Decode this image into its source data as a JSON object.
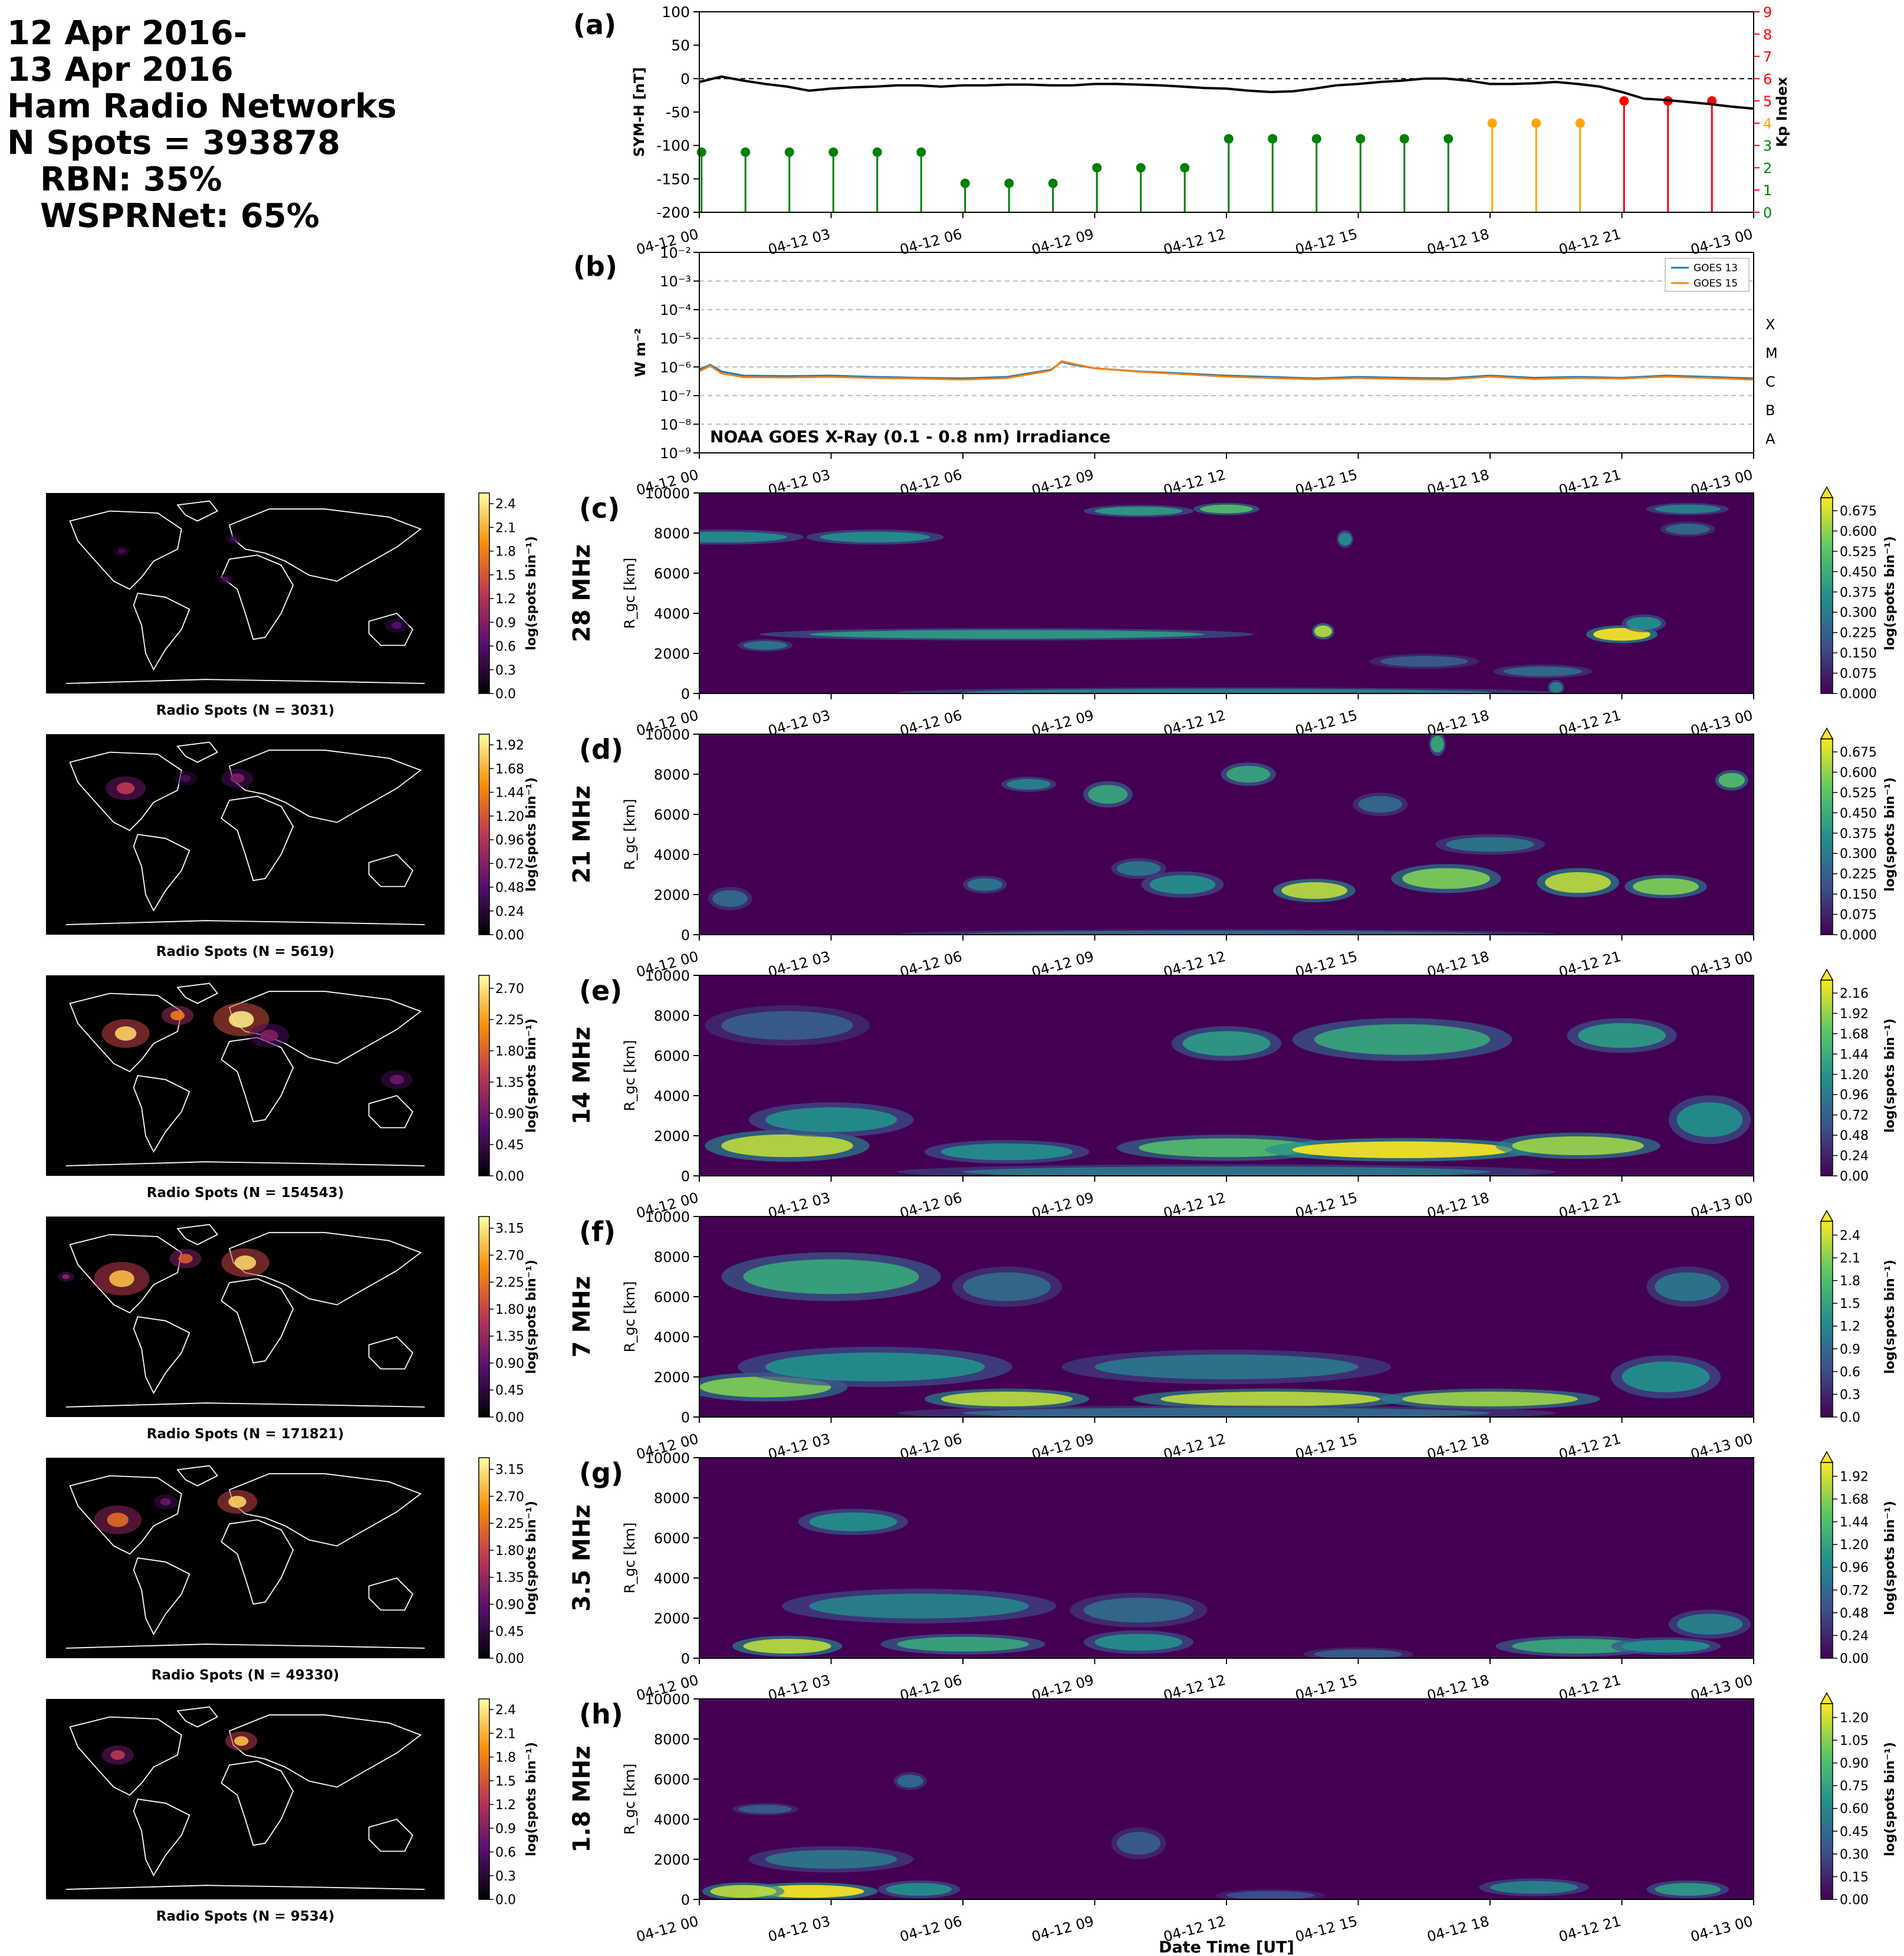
{
  "header": {
    "line1": "12 Apr 2016-",
    "line2": "13 Apr 2016",
    "line3": "Ham Radio Networks",
    "line4": "N Spots = 393878",
    "line5": "RBN: 35%",
    "line6": "WSPRNet: 65%"
  },
  "time_ticks": [
    "04-12 00",
    "04-12 03",
    "04-12 06",
    "04-12 09",
    "04-12 12",
    "04-12 15",
    "04-12 18",
    "04-12 21",
    "04-13 00"
  ],
  "xlabel": "Date Time [UT]",
  "colors": {
    "symh": "#000000",
    "kp_green": "#008000",
    "kp_orange": "#ffa500",
    "kp_red": "#ff0000",
    "goes13": "#1f77b4",
    "goes15": "#ff7f0e",
    "map_bg": "#000000",
    "coast": "#ffffff"
  },
  "chart_data": [
    {
      "panel": "(a)",
      "type": "line",
      "ylabel": "SYM-H [nT]",
      "ylim": [
        -200,
        100
      ],
      "yticks": [
        100,
        50,
        0,
        -50,
        -100,
        -150,
        -200
      ],
      "symh": {
        "x_hours": [
          0,
          0.5,
          1,
          1.5,
          2,
          2.5,
          3,
          3.5,
          4,
          4.5,
          5,
          5.5,
          6,
          6.5,
          7,
          7.5,
          8,
          8.5,
          9,
          9.5,
          10,
          10.5,
          11,
          11.5,
          12,
          12.5,
          13,
          13.5,
          14,
          14.5,
          15,
          15.5,
          16,
          16.5,
          17,
          17.5,
          18,
          18.5,
          19,
          19.5,
          20,
          20.5,
          21,
          21.5,
          22,
          22.5,
          23,
          23.5,
          24
        ],
        "values": [
          -5,
          3,
          -3,
          -8,
          -12,
          -18,
          -15,
          -13,
          -12,
          -10,
          -10,
          -12,
          -10,
          -10,
          -9,
          -9,
          -10,
          -10,
          -8,
          -8,
          -9,
          -10,
          -12,
          -14,
          -15,
          -18,
          -20,
          -19,
          -15,
          -10,
          -8,
          -5,
          -3,
          0,
          0,
          -3,
          -8,
          -8,
          -7,
          -5,
          -8,
          -12,
          -20,
          -30,
          -32,
          -35,
          -38,
          -42,
          -45
        ]
      },
      "zero_line": 0,
      "kp_axis": {
        "label": "Kp Index",
        "ylim": [
          0,
          9
        ],
        "ticks": [
          0,
          1,
          2,
          3,
          4,
          5,
          6,
          7,
          8,
          9
        ]
      },
      "kp": {
        "x_hours": [
          0,
          1,
          2,
          3,
          4,
          5,
          6,
          7,
          8,
          9,
          10,
          11,
          12,
          13,
          14,
          15,
          16,
          17,
          18,
          19,
          20,
          21,
          22,
          23
        ],
        "values": [
          2.7,
          2.7,
          2.7,
          2.7,
          2.7,
          2.7,
          1.3,
          1.3,
          1.3,
          2,
          2,
          2,
          3.3,
          3.3,
          3.3,
          3.3,
          3.3,
          3.3,
          4,
          4,
          4,
          5,
          5,
          5
        ],
        "colors": [
          "green",
          "green",
          "green",
          "green",
          "green",
          "green",
          "green",
          "green",
          "green",
          "green",
          "green",
          "green",
          "green",
          "green",
          "green",
          "green",
          "green",
          "green",
          "orange",
          "orange",
          "orange",
          "red",
          "red",
          "red"
        ]
      }
    },
    {
      "panel": "(b)",
      "type": "line",
      "ylabel": "W m⁻²",
      "yscale": "log",
      "ylim": [
        1e-09,
        0.01
      ],
      "ytick_labels": [
        "10⁻²",
        "10⁻³",
        "10⁻⁴",
        "10⁻⁵",
        "10⁻⁶",
        "10⁻⁷",
        "10⁻⁸",
        "10⁻⁹"
      ],
      "class_labels": [
        "X",
        "M",
        "C",
        "B",
        "A"
      ],
      "annotation": "NOAA GOES X-Ray (0.1 - 0.8 nm) Irradiance",
      "legend": [
        "GOES 13",
        "GOES 15"
      ],
      "legend_position": "top-right",
      "series": [
        {
          "name": "GOES 13",
          "x_hours": [
            0,
            0.25,
            0.5,
            1,
            2,
            3,
            4,
            5,
            6,
            7,
            7.5,
            8,
            8.25,
            8.5,
            9,
            10,
            11,
            12,
            13,
            14,
            15,
            16,
            17,
            18,
            19,
            20,
            21,
            22,
            23,
            24
          ],
          "values": [
            8e-07,
            1.2e-06,
            7e-07,
            5e-07,
            4.8e-07,
            5e-07,
            4.5e-07,
            4.2e-07,
            4e-07,
            4.5e-07,
            6e-07,
            8e-07,
            1.5e-06,
            1.2e-06,
            9e-07,
            7e-07,
            6e-07,
            5e-07,
            4.5e-07,
            4e-07,
            4.5e-07,
            4.2e-07,
            4e-07,
            5e-07,
            4.2e-07,
            4.5e-07,
            4.2e-07,
            5e-07,
            4.5e-07,
            4e-07
          ]
        },
        {
          "name": "GOES 15",
          "x_hours": [
            0,
            0.25,
            0.5,
            1,
            2,
            3,
            4,
            5,
            6,
            7,
            7.5,
            8,
            8.25,
            8.5,
            9,
            10,
            11,
            12,
            13,
            14,
            15,
            16,
            17,
            18,
            19,
            20,
            21,
            22,
            23,
            24
          ],
          "values": [
            7e-07,
            1.1e-06,
            6e-07,
            4.4e-07,
            4.3e-07,
            4.5e-07,
            4.1e-07,
            3.9e-07,
            3.6e-07,
            4.1e-07,
            5.5e-07,
            7.5e-07,
            1.6e-06,
            1.3e-06,
            9e-07,
            6.8e-07,
            5.6e-07,
            4.6e-07,
            4.1e-07,
            3.7e-07,
            4.1e-07,
            3.8e-07,
            3.6e-07,
            4.6e-07,
            3.8e-07,
            4.1e-07,
            3.9e-07,
            4.6e-07,
            4.1e-07,
            3.6e-07
          ]
        }
      ]
    },
    {
      "panel": "(c)",
      "type": "heatmap",
      "band": "28 MHz",
      "ylabel": "R_gc [km]",
      "ylim": [
        0,
        10000
      ],
      "yticks": [
        0,
        2000,
        4000,
        6000,
        8000,
        10000
      ],
      "colorbar": {
        "label": "log(spots bin⁻¹)",
        "ticks": [
          "0.000",
          "0.075",
          "0.150",
          "0.225",
          "0.300",
          "0.375",
          "0.450",
          "0.525",
          "0.600",
          "0.675"
        ]
      },
      "map": {
        "caption": "Radio Spots (N = 3031)",
        "colorbar_ticks": [
          "0.0",
          "0.3",
          "0.6",
          "0.9",
          "1.2",
          "1.5",
          "1.8",
          "2.1",
          "2.4"
        ]
      },
      "blobs": [
        [
          0.5,
          7800,
          3,
          300,
          0.5
        ],
        [
          4,
          7800,
          2.5,
          300,
          0.5
        ],
        [
          7,
          2950,
          9,
          200,
          0.55
        ],
        [
          1.5,
          2400,
          1,
          200,
          0.4
        ],
        [
          10,
          9100,
          2,
          200,
          0.55
        ],
        [
          12,
          9200,
          1.2,
          200,
          0.7
        ],
        [
          14.2,
          3100,
          0.4,
          350,
          0.9
        ],
        [
          14.7,
          7700,
          0.3,
          400,
          0.5
        ],
        [
          16.5,
          1600,
          2,
          300,
          0.3
        ],
        [
          19.2,
          1100,
          1.8,
          250,
          0.35
        ],
        [
          21,
          2950,
          1.3,
          400,
          1.0
        ],
        [
          21.5,
          3500,
          0.8,
          400,
          0.5
        ],
        [
          22.5,
          9200,
          1.5,
          200,
          0.45
        ],
        [
          22.5,
          8200,
          1,
          300,
          0.35
        ],
        [
          19.5,
          300,
          0.3,
          300,
          0.45
        ],
        [
          12,
          50,
          12,
          120,
          0.45
        ]
      ]
    },
    {
      "panel": "(d)",
      "type": "heatmap",
      "band": "21 MHz",
      "ylabel": "R_gc [km]",
      "ylim": [
        0,
        10000
      ],
      "yticks": [
        0,
        2000,
        4000,
        6000,
        8000,
        10000
      ],
      "colorbar": {
        "label": "log(spots bin⁻¹)",
        "ticks": [
          "0.000",
          "0.075",
          "0.150",
          "0.225",
          "0.300",
          "0.375",
          "0.450",
          "0.525",
          "0.600",
          "0.675"
        ]
      },
      "map": {
        "caption": "Radio Spots (N = 5619)",
        "colorbar_ticks": [
          "0.00",
          "0.24",
          "0.48",
          "0.72",
          "0.96",
          "1.20",
          "1.44",
          "1.68",
          "1.92"
        ]
      },
      "blobs": [
        [
          0.7,
          1800,
          0.8,
          600,
          0.35
        ],
        [
          7.5,
          7500,
          1,
          300,
          0.45
        ],
        [
          9.3,
          7000,
          0.9,
          700,
          0.6
        ],
        [
          12.5,
          8000,
          1,
          600,
          0.6
        ],
        [
          14,
          2200,
          1.5,
          600,
          0.9
        ],
        [
          17,
          2800,
          2,
          800,
          0.8
        ],
        [
          20,
          2600,
          1.5,
          800,
          0.9
        ],
        [
          22,
          2400,
          1.5,
          600,
          0.8
        ],
        [
          23.5,
          7700,
          0.6,
          500,
          0.7
        ],
        [
          16.8,
          9500,
          0.3,
          600,
          0.6
        ],
        [
          18,
          4500,
          2,
          500,
          0.4
        ],
        [
          11,
          2500,
          1.5,
          700,
          0.5
        ],
        [
          6.5,
          2500,
          0.8,
          400,
          0.4
        ],
        [
          10,
          3300,
          1,
          500,
          0.4
        ],
        [
          15.5,
          6500,
          1,
          600,
          0.35
        ],
        [
          12,
          30,
          12,
          100,
          0.35
        ]
      ]
    },
    {
      "panel": "(e)",
      "type": "heatmap",
      "band": "14 MHz",
      "ylabel": "R_gc [km]",
      "ylim": [
        0,
        10000
      ],
      "yticks": [
        0,
        2000,
        4000,
        6000,
        8000,
        10000
      ],
      "colorbar": {
        "label": "log(spots bin⁻¹)",
        "ticks": [
          "0.00",
          "0.24",
          "0.48",
          "0.72",
          "0.96",
          "1.20",
          "1.44",
          "1.68",
          "1.92",
          "2.16"
        ]
      },
      "map": {
        "caption": "Radio Spots (N = 154543)",
        "colorbar_ticks": [
          "0.00",
          "0.45",
          "0.90",
          "1.35",
          "1.80",
          "2.25",
          "2.70"
        ]
      },
      "blobs": [
        [
          2,
          1500,
          3,
          900,
          0.9
        ],
        [
          3,
          2800,
          3,
          1000,
          0.5
        ],
        [
          12,
          1400,
          4,
          700,
          0.7
        ],
        [
          16,
          1300,
          5,
          600,
          1.0
        ],
        [
          20,
          1500,
          3,
          700,
          0.85
        ],
        [
          16,
          6800,
          4,
          1300,
          0.6
        ],
        [
          12,
          6600,
          2,
          1000,
          0.55
        ],
        [
          21,
          7000,
          2,
          1000,
          0.55
        ],
        [
          2,
          7500,
          3,
          1200,
          0.3
        ],
        [
          23,
          2800,
          1.5,
          1500,
          0.5
        ],
        [
          7,
          1200,
          3,
          600,
          0.5
        ],
        [
          12,
          200,
          12,
          300,
          0.4
        ]
      ]
    },
    {
      "panel": "(f)",
      "type": "heatmap",
      "band": "7 MHz",
      "ylabel": "R_gc [km]",
      "ylim": [
        0,
        10000
      ],
      "yticks": [
        0,
        2000,
        4000,
        6000,
        8000,
        10000
      ],
      "colorbar": {
        "label": "log(spots bin⁻¹)",
        "ticks": [
          "0.0",
          "0.3",
          "0.6",
          "0.9",
          "1.2",
          "1.5",
          "1.8",
          "2.1",
          "2.4"
        ]
      },
      "map": {
        "caption": "Radio Spots (N = 171821)",
        "colorbar_ticks": [
          "0.00",
          "0.45",
          "0.90",
          "1.35",
          "1.80",
          "2.25",
          "2.70",
          "3.15"
        ]
      },
      "blobs": [
        [
          1.5,
          1500,
          3,
          800,
          0.8
        ],
        [
          7,
          900,
          3,
          500,
          0.9
        ],
        [
          13,
          900,
          5,
          500,
          0.9
        ],
        [
          18,
          900,
          4,
          500,
          0.85
        ],
        [
          4,
          2500,
          5,
          1200,
          0.5
        ],
        [
          3,
          7000,
          4,
          1500,
          0.6
        ],
        [
          7,
          6500,
          2,
          1200,
          0.35
        ],
        [
          22.5,
          6500,
          1.5,
          1200,
          0.4
        ],
        [
          12,
          2500,
          6,
          1000,
          0.4
        ],
        [
          22,
          2000,
          2,
          1300,
          0.5
        ],
        [
          12,
          200,
          12,
          300,
          0.35
        ]
      ]
    },
    {
      "panel": "(g)",
      "type": "heatmap",
      "band": "3.5 MHz",
      "ylabel": "R_gc [km]",
      "ylim": [
        0,
        10000
      ],
      "yticks": [
        0,
        2000,
        4000,
        6000,
        8000,
        10000
      ],
      "colorbar": {
        "label": "log(spots bin⁻¹)",
        "ticks": [
          "0.00",
          "0.24",
          "0.48",
          "0.72",
          "0.96",
          "1.20",
          "1.44",
          "1.68",
          "1.92"
        ]
      },
      "map": {
        "caption": "Radio Spots (N = 49330)",
        "colorbar_ticks": [
          "0.00",
          "0.45",
          "0.90",
          "1.35",
          "1.80",
          "2.25",
          "2.70",
          "3.15"
        ]
      },
      "blobs": [
        [
          2,
          600,
          2,
          500,
          0.9
        ],
        [
          6,
          700,
          3,
          500,
          0.6
        ],
        [
          10,
          800,
          2,
          600,
          0.5
        ],
        [
          3.5,
          6800,
          2,
          700,
          0.5
        ],
        [
          5,
          2600,
          5,
          1000,
          0.45
        ],
        [
          10,
          2400,
          2.5,
          1000,
          0.35
        ],
        [
          20,
          600,
          3,
          500,
          0.6
        ],
        [
          23,
          1700,
          1.5,
          800,
          0.45
        ],
        [
          22,
          600,
          2,
          400,
          0.5
        ],
        [
          15,
          200,
          2,
          250,
          0.3
        ]
      ]
    },
    {
      "panel": "(h)",
      "type": "heatmap",
      "band": "1.8 MHz",
      "ylabel": "R_gc [km]",
      "ylim": [
        0,
        10000
      ],
      "yticks": [
        0,
        2000,
        4000,
        6000,
        8000,
        10000
      ],
      "colorbar": {
        "label": "log(spots bin⁻¹)",
        "ticks": [
          "0.00",
          "0.15",
          "0.30",
          "0.45",
          "0.60",
          "0.75",
          "0.90",
          "1.05",
          "1.20"
        ]
      },
      "map": {
        "caption": "Radio Spots (N = 9534)",
        "colorbar_ticks": [
          "0.0",
          "0.3",
          "0.6",
          "0.9",
          "1.2",
          "1.5",
          "1.8",
          "2.1",
          "2.4"
        ]
      },
      "blobs": [
        [
          2.5,
          400,
          2.5,
          400,
          1.0
        ],
        [
          1,
          400,
          1.5,
          400,
          0.9
        ],
        [
          5,
          500,
          1.5,
          400,
          0.5
        ],
        [
          3,
          2000,
          3,
          700,
          0.4
        ],
        [
          10,
          2800,
          1,
          900,
          0.3
        ],
        [
          1.5,
          4500,
          1.2,
          200,
          0.3
        ],
        [
          4.8,
          5900,
          0.6,
          400,
          0.35
        ],
        [
          19,
          600,
          2,
          400,
          0.45
        ],
        [
          22.5,
          500,
          1.5,
          400,
          0.55
        ],
        [
          13,
          200,
          2,
          200,
          0.25
        ]
      ]
    }
  ]
}
